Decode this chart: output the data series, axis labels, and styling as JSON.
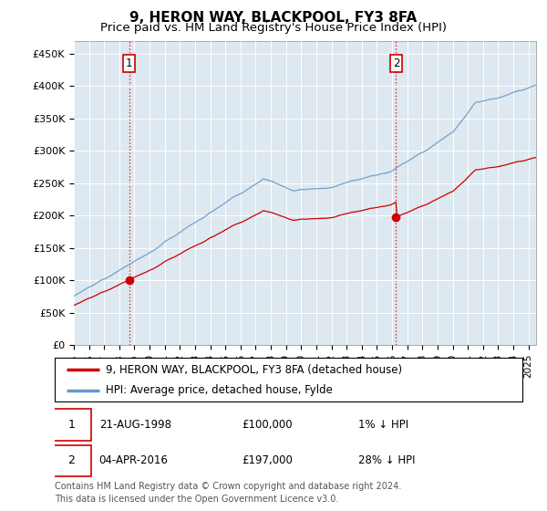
{
  "title": "9, HERON WAY, BLACKPOOL, FY3 8FA",
  "subtitle": "Price paid vs. HM Land Registry's House Price Index (HPI)",
  "ylabel_ticks": [
    "£0",
    "£50K",
    "£100K",
    "£150K",
    "£200K",
    "£250K",
    "£300K",
    "£350K",
    "£400K",
    "£450K"
  ],
  "ytick_vals": [
    0,
    50000,
    100000,
    150000,
    200000,
    250000,
    300000,
    350000,
    400000,
    450000
  ],
  "ylim": [
    0,
    470000
  ],
  "xlim_start": 1995.0,
  "xlim_end": 2025.5,
  "transaction1": {
    "date_num": 1998.64,
    "price": 100000,
    "label": "1"
  },
  "transaction2": {
    "date_num": 2016.26,
    "price": 197000,
    "label": "2"
  },
  "legend_line1": "9, HERON WAY, BLACKPOOL, FY3 8FA (detached house)",
  "legend_line2": "HPI: Average price, detached house, Fylde",
  "annotation1": [
    "1",
    "21-AUG-1998",
    "£100,000",
    "1% ↓ HPI"
  ],
  "annotation2": [
    "2",
    "04-APR-2016",
    "£197,000",
    "28% ↓ HPI"
  ],
  "footer": "Contains HM Land Registry data © Crown copyright and database right 2024.\nThis data is licensed under the Open Government Licence v3.0.",
  "line_color_red": "#cc0000",
  "line_color_blue": "#6699cc",
  "vline_color": "#cc0000",
  "plot_bg_color": "#dde8f0",
  "background_color": "#ffffff",
  "grid_color": "#ffffff",
  "title_fontsize": 11,
  "subtitle_fontsize": 9.5,
  "tick_fontsize": 8,
  "legend_fontsize": 8.5,
  "annotation_fontsize": 8.5,
  "footer_fontsize": 7
}
